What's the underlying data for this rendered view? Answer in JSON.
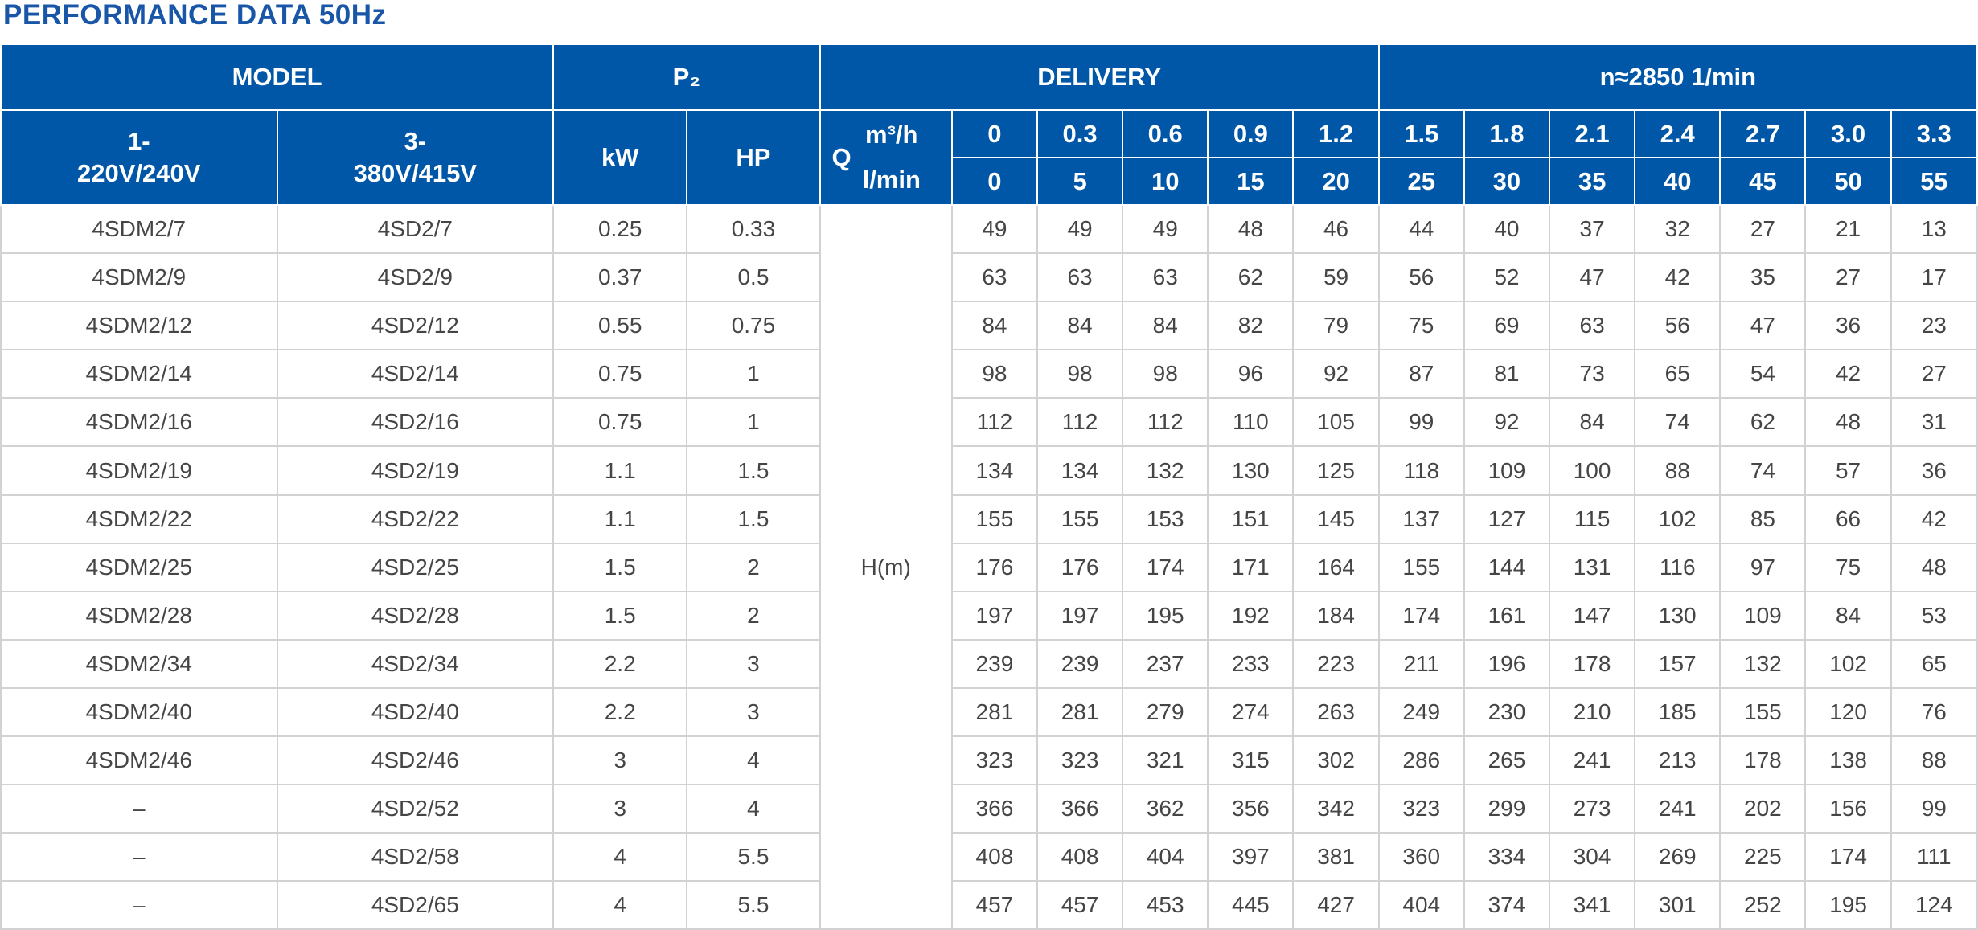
{
  "title": "PERFORMANCE DATA 50Hz",
  "header": {
    "model": "MODEL",
    "p2": "P₂",
    "delivery": "DELIVERY",
    "speed": "n≈2850  1/min",
    "col_1ph_line1": "1-",
    "col_1ph_line2": "220V/240V",
    "col_3ph_line1": "3-",
    "col_3ph_line2": "380V/415V",
    "kw": "kW",
    "hp": "HP",
    "q": "Q",
    "unit_m3h": "m³/h",
    "unit_lmin": "l/min",
    "head_label": "H(m)",
    "flow_m3h": [
      "0",
      "0.3",
      "0.6",
      "0.9",
      "1.2",
      "1.5",
      "1.8",
      "2.1",
      "2.4",
      "2.7",
      "3.0",
      "3.3"
    ],
    "flow_lmin": [
      "0",
      "5",
      "10",
      "15",
      "20",
      "25",
      "30",
      "35",
      "40",
      "45",
      "50",
      "55"
    ]
  },
  "rows": [
    {
      "m1": "4SDM2/7",
      "m3": "4SD2/7",
      "kw": "0.25",
      "hp": "0.33",
      "h": [
        "49",
        "49",
        "49",
        "48",
        "46",
        "44",
        "40",
        "37",
        "32",
        "27",
        "21",
        "13"
      ]
    },
    {
      "m1": "4SDM2/9",
      "m3": "4SD2/9",
      "kw": "0.37",
      "hp": "0.5",
      "h": [
        "63",
        "63",
        "63",
        "62",
        "59",
        "56",
        "52",
        "47",
        "42",
        "35",
        "27",
        "17"
      ]
    },
    {
      "m1": "4SDM2/12",
      "m3": "4SD2/12",
      "kw": "0.55",
      "hp": "0.75",
      "h": [
        "84",
        "84",
        "84",
        "82",
        "79",
        "75",
        "69",
        "63",
        "56",
        "47",
        "36",
        "23"
      ]
    },
    {
      "m1": "4SDM2/14",
      "m3": "4SD2/14",
      "kw": "0.75",
      "hp": "1",
      "h": [
        "98",
        "98",
        "98",
        "96",
        "92",
        "87",
        "81",
        "73",
        "65",
        "54",
        "42",
        "27"
      ]
    },
    {
      "m1": "4SDM2/16",
      "m3": "4SD2/16",
      "kw": "0.75",
      "hp": "1",
      "h": [
        "112",
        "112",
        "112",
        "110",
        "105",
        "99",
        "92",
        "84",
        "74",
        "62",
        "48",
        "31"
      ]
    },
    {
      "m1": "4SDM2/19",
      "m3": "4SD2/19",
      "kw": "1.1",
      "hp": "1.5",
      "h": [
        "134",
        "134",
        "132",
        "130",
        "125",
        "118",
        "109",
        "100",
        "88",
        "74",
        "57",
        "36"
      ]
    },
    {
      "m1": "4SDM2/22",
      "m3": "4SD2/22",
      "kw": "1.1",
      "hp": "1.5",
      "h": [
        "155",
        "155",
        "153",
        "151",
        "145",
        "137",
        "127",
        "115",
        "102",
        "85",
        "66",
        "42"
      ]
    },
    {
      "m1": "4SDM2/25",
      "m3": "4SD2/25",
      "kw": "1.5",
      "hp": "2",
      "h": [
        "176",
        "176",
        "174",
        "171",
        "164",
        "155",
        "144",
        "131",
        "116",
        "97",
        "75",
        "48"
      ]
    },
    {
      "m1": "4SDM2/28",
      "m3": "4SD2/28",
      "kw": "1.5",
      "hp": "2",
      "h": [
        "197",
        "197",
        "195",
        "192",
        "184",
        "174",
        "161",
        "147",
        "130",
        "109",
        "84",
        "53"
      ]
    },
    {
      "m1": "4SDM2/34",
      "m3": "4SD2/34",
      "kw": "2.2",
      "hp": "3",
      "h": [
        "239",
        "239",
        "237",
        "233",
        "223",
        "211",
        "196",
        "178",
        "157",
        "132",
        "102",
        "65"
      ]
    },
    {
      "m1": "4SDM2/40",
      "m3": "4SD2/40",
      "kw": "2.2",
      "hp": "3",
      "h": [
        "281",
        "281",
        "279",
        "274",
        "263",
        "249",
        "230",
        "210",
        "185",
        "155",
        "120",
        "76"
      ]
    },
    {
      "m1": "4SDM2/46",
      "m3": "4SD2/46",
      "kw": "3",
      "hp": "4",
      "h": [
        "323",
        "323",
        "321",
        "315",
        "302",
        "286",
        "265",
        "241",
        "213",
        "178",
        "138",
        "88"
      ]
    },
    {
      "m1": "–",
      "m3": "4SD2/52",
      "kw": "3",
      "hp": "4",
      "h": [
        "366",
        "366",
        "362",
        "356",
        "342",
        "323",
        "299",
        "273",
        "241",
        "202",
        "156",
        "99"
      ]
    },
    {
      "m1": "–",
      "m3": "4SD2/58",
      "kw": "4",
      "hp": "5.5",
      "h": [
        "408",
        "408",
        "404",
        "397",
        "381",
        "360",
        "334",
        "304",
        "269",
        "225",
        "174",
        "111"
      ]
    },
    {
      "m1": "–",
      "m3": "4SD2/65",
      "kw": "4",
      "hp": "5.5",
      "h": [
        "457",
        "457",
        "453",
        "445",
        "427",
        "404",
        "374",
        "341",
        "301",
        "252",
        "195",
        "124"
      ]
    }
  ]
}
